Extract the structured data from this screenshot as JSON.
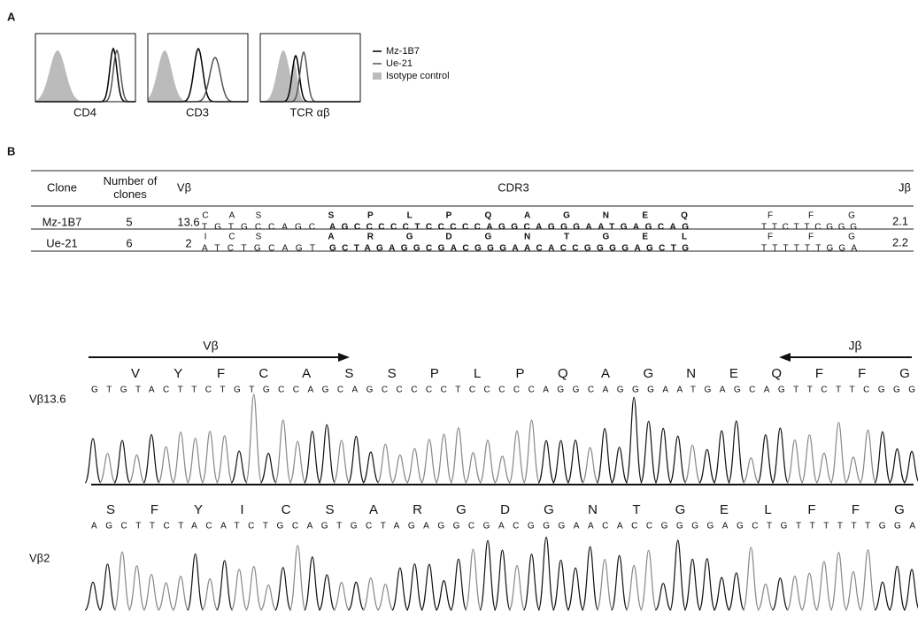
{
  "panel_a": {
    "label": "A",
    "plots": [
      "CD4",
      "CD3",
      "TCR αβ"
    ],
    "legend": [
      "Mz-1B7",
      "Ue-21",
      "Isotype control"
    ]
  },
  "panel_b": {
    "label": "B",
    "table": {
      "header": [
        "Clone",
        "Number of clones",
        "Vβ",
        "CDR3",
        "Jβ"
      ],
      "rows": [
        {
          "clone": "Mz-1B7",
          "number": 5,
          "vb": 13.6,
          "v_aa": [
            "C",
            "A",
            "S"
          ],
          "v_nt": "TGTGCCAGC",
          "cdr3_aa": [
            "S",
            "P",
            "L",
            "P",
            "Q",
            "A",
            "G",
            "N",
            "E",
            "Q"
          ],
          "cdr3_nt": "AGCCCCCTCCCCCAGGCAGGGAATGAGCAG",
          "j_aa": [
            "F",
            "F",
            "G"
          ],
          "j_nt": "TTCTTCGGG",
          "jb": 2.1
        },
        {
          "clone": "Ue-21",
          "number": 6,
          "vb": 2,
          "v_aa": [
            "I",
            "C",
            "S"
          ],
          "v_nt": "ATCTGCAGT",
          "cdr3_aa": [
            "A",
            "R",
            "G",
            "D",
            "G",
            "N",
            "T",
            "G",
            "E",
            "L"
          ],
          "cdr3_nt": "GCTAGAGGCGACGGGAACACCGGGGAGCTG",
          "j_aa": [
            "F",
            "F",
            "G"
          ],
          "j_nt": "TTTTTTGGA",
          "jb": 2.2
        }
      ]
    }
  },
  "chromatogram": {
    "arrows": [
      "Vβ",
      "Jβ"
    ],
    "traces": [
      {
        "label": "Vβ13.6",
        "aa": [
          "V",
          "Y",
          "F",
          "C",
          "A",
          "S",
          "S",
          "P",
          "L",
          "P",
          "Q",
          "A",
          "G",
          "N",
          "E",
          "Q",
          "F",
          "F",
          "G"
        ],
        "nt": "GTGTACTTCTGTGCCAGCAGCCCCCTCCCCCAGGCAGGGAATGAGCAGTTCTTCGGG"
      },
      {
        "label": "Vβ2",
        "aa": [
          "S",
          "F",
          "Y",
          "I",
          "C",
          "S",
          "A",
          "R",
          "G",
          "D",
          "G",
          "N",
          "T",
          "G",
          "E",
          "L",
          "F",
          "F",
          "G"
        ],
        "nt": "AGCTTCTACATCTGCAGTGCTAGAGGCGACGGGAACACCGGGGAGCTGTTTTTTGGA"
      }
    ]
  }
}
